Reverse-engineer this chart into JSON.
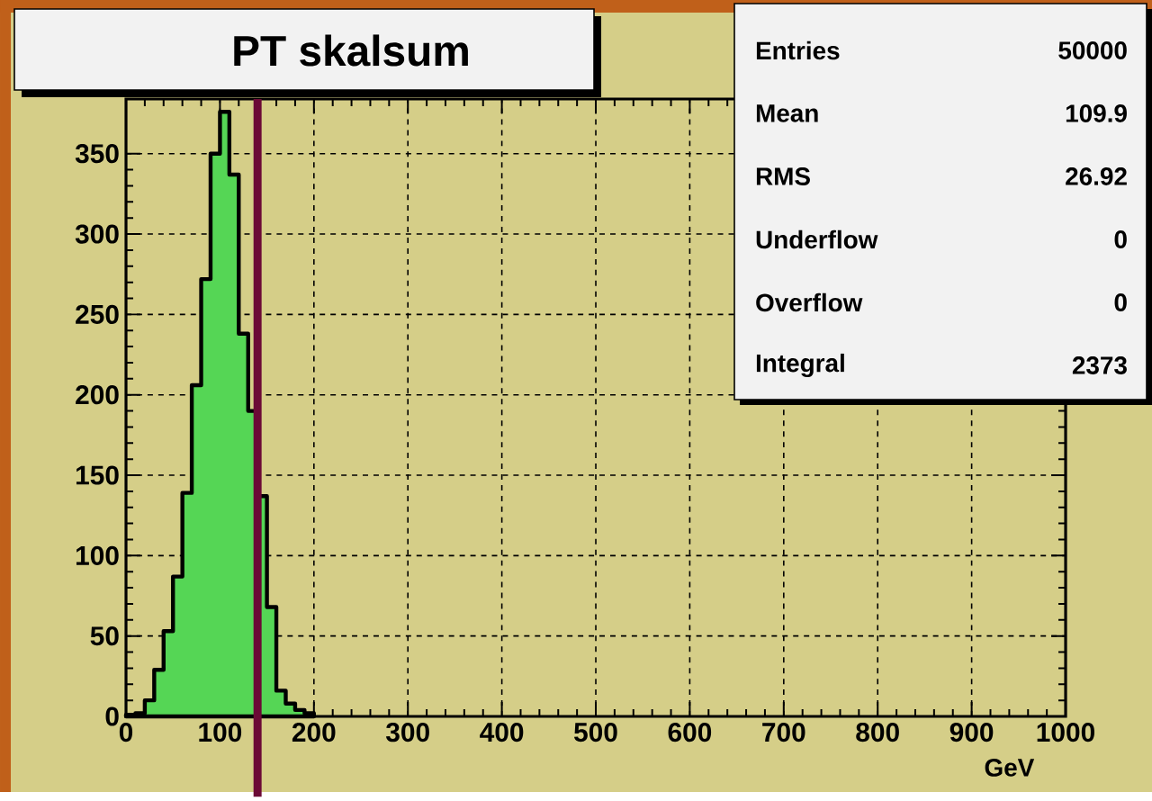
{
  "chart_data": {
    "type": "histogram",
    "title": "PT skalsum",
    "xlabel": "GeV",
    "bins": [
      0,
      10,
      20,
      30,
      40,
      50,
      60,
      70,
      80,
      90,
      100,
      110,
      120,
      130,
      140,
      150,
      160,
      170,
      180,
      190,
      200
    ],
    "values": [
      1,
      2,
      10,
      29,
      53,
      87,
      139,
      206,
      272,
      350,
      376,
      337,
      238,
      190,
      137,
      68,
      16,
      8,
      4,
      2
    ],
    "color": "#55d655",
    "xlim": [
      0,
      1000
    ],
    "ylim": [
      0,
      384
    ],
    "xticks": [
      0,
      100,
      200,
      300,
      400,
      500,
      600,
      700,
      800,
      900,
      1000
    ],
    "yticks": [
      0,
      50,
      100,
      150,
      200,
      250,
      300,
      350
    ],
    "grid": true,
    "ref_lines": [
      {
        "axis": "x",
        "value": 140,
        "color": "#6b0a36"
      }
    ],
    "annotations": [
      "Entries",
      "50000",
      "Mean",
      "109.9",
      "RMS",
      "26.92",
      "Underflow",
      "0",
      "Overflow",
      "0",
      "Integral",
      "2373"
    ]
  }
}
